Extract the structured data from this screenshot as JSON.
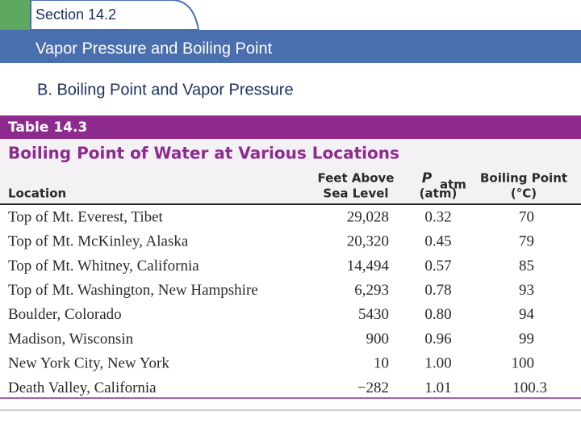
{
  "header": {
    "section": "Section 14.2",
    "title": "Vapor Pressure and Boiling Point",
    "subtitle": "B. Boiling Point and Vapor Pressure"
  },
  "table": {
    "label": "Table 14.3",
    "title": "Boiling Point of Water at Various Locations",
    "columns": [
      {
        "lines": [
          "Location"
        ]
      },
      {
        "lines": [
          "Feet Above",
          "Sea Level"
        ]
      },
      {
        "symbol": "P",
        "subscript": "atm",
        "lines": [
          "(atm)"
        ]
      },
      {
        "lines": [
          "Boiling Point",
          "(°C)"
        ]
      }
    ],
    "rows": [
      [
        "Top of Mt. Everest, Tibet",
        "29,028",
        "0.32",
        "70"
      ],
      [
        "Top of Mt. McKinley, Alaska",
        "20,320",
        "0.45",
        "79"
      ],
      [
        "Top of Mt. Whitney, California",
        "14,494",
        "0.57",
        "85"
      ],
      [
        "Top of Mt. Washington, New Hampshire",
        "6,293",
        "0.78",
        "93"
      ],
      [
        "Boulder, Colorado",
        "5430",
        "0.80",
        "94"
      ],
      [
        "Madison, Wisconsin",
        "900",
        "0.96",
        "99"
      ],
      [
        "New York City, New York",
        "10",
        "1.00",
        "100"
      ],
      [
        "Death Valley, California",
        "−282",
        "1.01",
        "100.3"
      ]
    ]
  }
}
